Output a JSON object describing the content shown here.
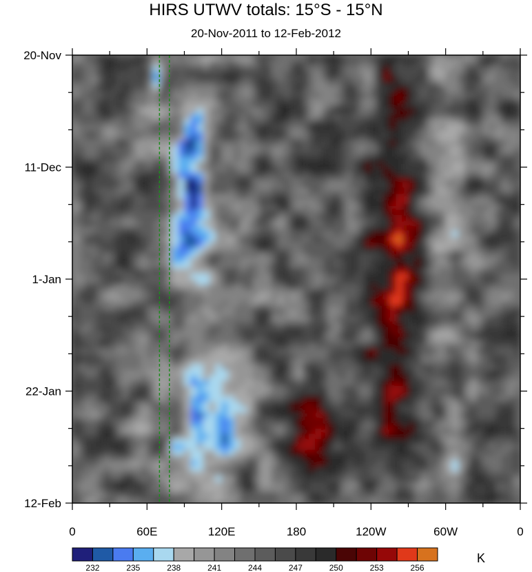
{
  "chart_data": {
    "type": "heatmap",
    "title": "HIRS UTWV totals: 15°S - 15°N",
    "subtitle": "20-Nov-2011 to 12-Feb-2012",
    "xlabel": "",
    "ylabel": "",
    "x_ticks": [
      "0",
      "60E",
      "120E",
      "180",
      "120W",
      "60W",
      "0"
    ],
    "x_tick_values": [
      0,
      60,
      120,
      180,
      240,
      300,
      360
    ],
    "xlim": [
      0,
      360
    ],
    "y_ticks": [
      "20-Nov",
      "11-Dec",
      "1-Jan",
      "22-Jan",
      "12-Feb"
    ],
    "ylim": [
      "2011-11-20",
      "2012-02-12"
    ],
    "y_reversed": true,
    "colorbar": {
      "levels": [
        232,
        233.5,
        235,
        236.5,
        238,
        239.5,
        241,
        242.5,
        244,
        245.5,
        247,
        248.5,
        250,
        251.5,
        253,
        254.5,
        256
      ],
      "tick_labels": [
        "232",
        "235",
        "238",
        "241",
        "244",
        "247",
        "250",
        "253",
        "256"
      ],
      "colors": [
        "#1f1f7a",
        "#1f5aa6",
        "#4a7bf0",
        "#5aaef0",
        "#a9d8ef",
        "#a8a8a8",
        "#969696",
        "#838383",
        "#6f6f6f",
        "#5c5c5c",
        "#4a4a4a",
        "#393939",
        "#2a2a2a",
        "#4a0505",
        "#6e0404",
        "#960808",
        "#e0391a",
        "#d7721e"
      ],
      "unit": "K"
    },
    "annotations": {
      "dashed_lines_lon": [
        70,
        78
      ],
      "dashed_color": "#1e8c1e"
    },
    "features": {
      "cold_bands": [
        {
          "lon_start": 62,
          "lon_end": 72,
          "lat_day_start": 0,
          "lat_day_end": 9
        },
        {
          "lon_start": 82,
          "lon_end": 112,
          "lat_day_start": 9,
          "lat_day_end": 40
        },
        {
          "lon_start": 88,
          "lon_end": 140,
          "lat_day_start": 58,
          "lat_day_end": 82
        }
      ],
      "warm_bands": [
        {
          "lon_start": 240,
          "lon_end": 280,
          "lat_day_start": 0,
          "lat_day_end": 84
        },
        {
          "lon_start": 175,
          "lon_end": 215,
          "lat_day_start": 62,
          "lat_day_end": 80
        }
      ]
    }
  }
}
